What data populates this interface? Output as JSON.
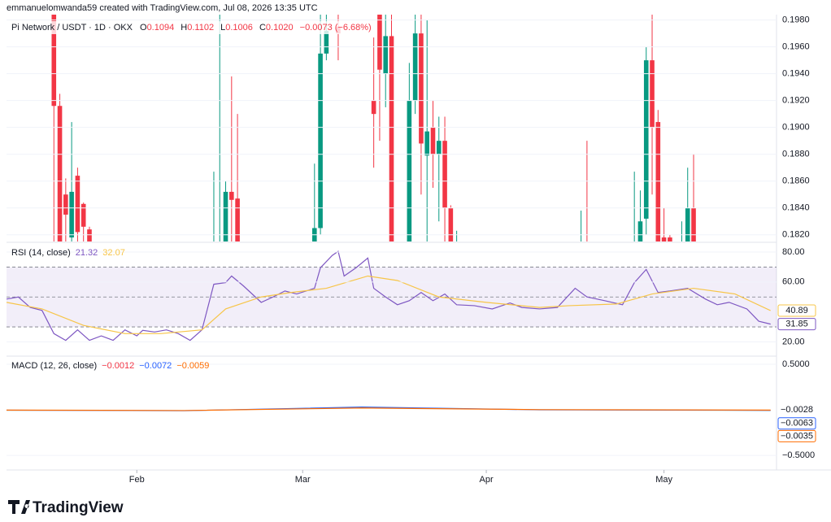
{
  "header": {
    "attribution": "emmanuelomwanda59 created with TradingView.com, Jul 08, 2026 13:35 UTC",
    "symbol": "Pi Network / USDT · 1D · OKX",
    "o_label": "O",
    "o": "0.1094",
    "h_label": "H",
    "h": "0.1102",
    "l_label": "L",
    "l": "0.1006",
    "c_label": "C",
    "c": "0.1020",
    "change": "−0.0073 (−6.68%)"
  },
  "footer": {
    "brand": "TradingView"
  },
  "chart_data": [
    {
      "type": "candlestick",
      "xlim": [
        0,
        130
      ],
      "xticks": [
        {
          "value": 22,
          "label": "Feb"
        },
        {
          "value": 50,
          "label": "Mar"
        },
        {
          "value": 81,
          "label": "Apr"
        },
        {
          "value": 111,
          "label": "May"
        }
      ],
      "ylim": [
        0.1815,
        0.1984
      ],
      "yticks": [
        {
          "value": 0.198,
          "label": "0.1980"
        },
        {
          "value": 0.196,
          "label": "0.1960"
        },
        {
          "value": 0.194,
          "label": "0.1940"
        },
        {
          "value": 0.192,
          "label": "0.1920"
        },
        {
          "value": 0.19,
          "label": "0.1900"
        },
        {
          "value": 0.188,
          "label": "0.1880"
        },
        {
          "value": 0.186,
          "label": "0.1860"
        },
        {
          "value": 0.184,
          "label": "0.1840"
        },
        {
          "value": 0.182,
          "label": "0.1820"
        }
      ],
      "up_color": "#089981",
      "down_color": "#f23645",
      "x": [
        8,
        9,
        10,
        11,
        12,
        13,
        14,
        35,
        36,
        37,
        38,
        39,
        52,
        53,
        54,
        56,
        62,
        63,
        64,
        65,
        68,
        69,
        70,
        71,
        72,
        73,
        74,
        75,
        76,
        97,
        98,
        106,
        107,
        108,
        109,
        110,
        111,
        112,
        114,
        115,
        116
      ],
      "open": [
        0.199,
        0.1916,
        0.185,
        0.1818,
        0.1864,
        0.1843,
        0.1824,
        0.178,
        0.178,
        0.18,
        0.1852,
        0.1847,
        0.18,
        0.1825,
        0.1955,
        0.1975,
        0.192,
        0.2,
        0.194,
        0.1968,
        0.178,
        0.192,
        0.197,
        0.1879,
        0.19,
        0.188,
        0.189,
        0.184,
        0.178,
        0.178,
        0.18,
        0.178,
        0.179,
        0.1832,
        0.195,
        0.1904,
        0.1818,
        0.1818,
        0.18,
        0.179,
        0.184
      ],
      "high": [
        0.2,
        0.1925,
        0.1862,
        0.1904,
        0.187,
        0.1844,
        0.1826,
        0.1867,
        0.2,
        0.186,
        0.1938,
        0.191,
        0.1873,
        0.1985,
        0.2,
        0.199,
        0.1967,
        0.2,
        0.199,
        0.199,
        0.1948,
        0.2,
        0.1985,
        0.198,
        0.192,
        0.1908,
        0.1908,
        0.1842,
        0.1823,
        0.1838,
        0.189,
        0.1867,
        0.1853,
        0.196,
        0.2,
        0.1913,
        0.184,
        0.182,
        0.183,
        0.187,
        0.188
      ],
      "low": [
        0.18,
        0.178,
        0.18,
        0.18,
        0.18,
        0.18,
        0.18,
        0.17,
        0.17,
        0.178,
        0.18,
        0.178,
        0.178,
        0.182,
        0.195,
        0.195,
        0.187,
        0.189,
        0.1915,
        0.175,
        0.176,
        0.191,
        0.185,
        0.18,
        0.1855,
        0.183,
        0.18,
        0.178,
        0.177,
        0.177,
        0.177,
        0.177,
        0.178,
        0.182,
        0.185,
        0.177,
        0.18,
        0.18,
        0.178,
        0.178,
        0.178
      ],
      "close": [
        0.1916,
        0.181,
        0.1835,
        0.1852,
        0.1822,
        0.1826,
        0.181,
        0.18,
        0.181,
        0.1852,
        0.1846,
        0.179,
        0.1825,
        0.1955,
        0.1972,
        0.197,
        0.191,
        0.1943,
        0.1968,
        0.178,
        0.192,
        0.197,
        0.1888,
        0.1897,
        0.188,
        0.189,
        0.184,
        0.179,
        0.179,
        0.179,
        0.179,
        0.179,
        0.183,
        0.195,
        0.19,
        0.178,
        0.1812,
        0.181,
        0.181,
        0.184,
        0.179
      ]
    },
    {
      "type": "line",
      "name": "RSI (14, close)",
      "legend_values": [
        21.32,
        32.07
      ],
      "xlim": [
        0,
        130
      ],
      "ylim": [
        11,
        86
      ],
      "yticks": [
        {
          "value": 80,
          "label": "80.00"
        },
        {
          "value": 60,
          "label": "60.00"
        },
        {
          "value": 20,
          "label": "20.00"
        }
      ],
      "band": [
        30,
        70
      ],
      "midline": 50,
      "band_color": "#7e57c2",
      "series": [
        {
          "color": "#7e57c2",
          "x": [
            0,
            2,
            4,
            6,
            8,
            10,
            12,
            14,
            16,
            18,
            20,
            22,
            23,
            25,
            27,
            29,
            31,
            33,
            35,
            37,
            38,
            40,
            43,
            45,
            47,
            49,
            52,
            53,
            55,
            56,
            57,
            59,
            61,
            62,
            64,
            66,
            68,
            70,
            72,
            74,
            76,
            79,
            82,
            85,
            87,
            90,
            93,
            96,
            98,
            101,
            104,
            106,
            108,
            110,
            112,
            115,
            118,
            120,
            122,
            125,
            127,
            129
          ],
          "values": [
            48.6,
            50,
            43,
            41,
            25.5,
            21,
            28,
            21,
            24,
            21,
            28,
            24,
            27.7,
            26.6,
            28,
            25.5,
            21,
            28,
            58.5,
            59.6,
            64,
            57.4,
            46.4,
            50,
            54,
            52,
            55.8,
            69.5,
            77.8,
            80.5,
            64,
            69.5,
            76,
            55.8,
            50,
            44.8,
            47.5,
            53,
            47.5,
            52,
            44.8,
            44.2,
            42,
            46,
            43,
            42,
            43,
            55.8,
            50,
            47.5,
            44.8,
            59.6,
            68.4,
            53,
            54,
            55.8,
            48.6,
            44.8,
            46.4,
            42,
            33.8,
            31.85
          ],
          "last": 31.85
        },
        {
          "color": "#f7c548",
          "x": [
            0,
            6,
            13,
            20,
            26,
            33,
            37,
            43,
            48,
            54,
            61,
            66,
            73,
            81,
            90,
            95,
            103,
            109,
            116,
            123,
            129
          ],
          "values": [
            46.4,
            42,
            31,
            25.5,
            25.5,
            28,
            42,
            50,
            53,
            55.8,
            64,
            61,
            50,
            46.4,
            43,
            44.2,
            45.3,
            52,
            55.8,
            52,
            40.89
          ],
          "last": 40.89
        }
      ]
    },
    {
      "type": "line",
      "name": "MACD (12, 26, close)",
      "legend_values": [
        {
          "value": -0.0012,
          "label": "−0.0012"
        },
        {
          "value": -0.0072,
          "label": "−0.0072"
        },
        {
          "value": -0.0059,
          "label": "−0.0059"
        }
      ],
      "xlim": [
        0,
        130
      ],
      "ylim": [
        -0.66,
        0.58
      ],
      "yticks": [
        {
          "value": 0.5,
          "label": "0.5000"
        },
        {
          "value": -0.5,
          "label": "−0.5000"
        }
      ],
      "histogram_last": {
        "value": -0.0028,
        "label": "−0.0028"
      },
      "series": [
        {
          "color": "#2962ff",
          "x": [
            0,
            30,
            60,
            90,
            129
          ],
          "values": [
            -0.004,
            -0.01,
            0.03,
            0,
            -0.0063
          ],
          "last": {
            "value": -0.0063,
            "label": "−0.0063"
          }
        },
        {
          "color": "#ff6d00",
          "x": [
            0,
            30,
            60,
            90,
            129
          ],
          "values": [
            -0.003,
            -0.008,
            0.02,
            0.002,
            -0.0035
          ],
          "last": {
            "value": -0.0035,
            "label": "−0.0035"
          }
        }
      ]
    }
  ]
}
